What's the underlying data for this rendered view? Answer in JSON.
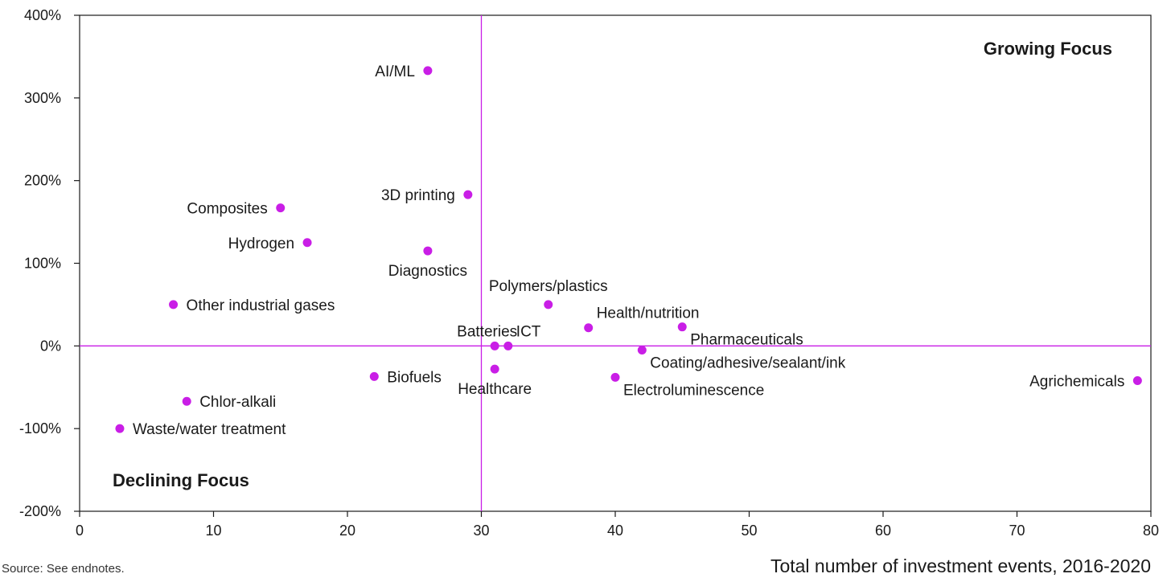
{
  "chart_data": {
    "type": "scatter",
    "xlabel": "Total number of investment events, 2016-2020",
    "ylabel": "",
    "xlim": [
      0,
      80
    ],
    "ylim": [
      -200,
      400
    ],
    "x_ticks": [
      0,
      10,
      20,
      30,
      40,
      50,
      60,
      70,
      80
    ],
    "y_ticks": [
      -200,
      -100,
      0,
      100,
      200,
      300,
      400
    ],
    "y_tick_labels": [
      "-200%",
      "-100%",
      "0%",
      "100%",
      "200%",
      "300%",
      "400%"
    ],
    "x_tick_labels": [
      "0",
      "10",
      "20",
      "30",
      "40",
      "50",
      "60",
      "70",
      "80"
    ],
    "reference_lines": {
      "x": 30,
      "y": 0
    },
    "quadrant_labels": {
      "top_right": "Growing Focus",
      "bottom_left": "Declining Focus"
    },
    "point_color": "#c91ee6",
    "reference_line_color": "#c91ee6",
    "points": [
      {
        "label": "AI/ML",
        "x": 26,
        "y": 333,
        "label_pos": "left"
      },
      {
        "label": "3D printing",
        "x": 29,
        "y": 183,
        "label_pos": "left"
      },
      {
        "label": "Composites",
        "x": 15,
        "y": 167,
        "label_pos": "left"
      },
      {
        "label": "Hydrogen",
        "x": 17,
        "y": 125,
        "label_pos": "left"
      },
      {
        "label": "Diagnostics",
        "x": 26,
        "y": 115,
        "label_pos": "below"
      },
      {
        "label": "Other industrial gases",
        "x": 7,
        "y": 50,
        "label_pos": "right"
      },
      {
        "label": "Polymers/plastics",
        "x": 35,
        "y": 50,
        "label_pos": "above"
      },
      {
        "label": "Health/nutrition",
        "x": 38,
        "y": 22,
        "label_pos": "above-right"
      },
      {
        "label": "Pharmaceuticals",
        "x": 45,
        "y": 23,
        "label_pos": "below-right"
      },
      {
        "label": "Batteries",
        "x": 31,
        "y": 0,
        "label_pos": "above-left"
      },
      {
        "label": "ICT",
        "x": 32,
        "y": 0,
        "label_pos": "above-right"
      },
      {
        "label": "Coating/adhesive/sealant/ink",
        "x": 42,
        "y": -5,
        "label_pos": "below-right"
      },
      {
        "label": "Healthcare",
        "x": 31,
        "y": -28,
        "label_pos": "below"
      },
      {
        "label": "Biofuels",
        "x": 22,
        "y": -37,
        "label_pos": "right"
      },
      {
        "label": "Electroluminescence",
        "x": 40,
        "y": -38,
        "label_pos": "below-right"
      },
      {
        "label": "Agrichemicals",
        "x": 79,
        "y": -42,
        "label_pos": "left"
      },
      {
        "label": "Chlor-alkali",
        "x": 8,
        "y": -67,
        "label_pos": "right"
      },
      {
        "label": "Waste/water treatment",
        "x": 3,
        "y": -100,
        "label_pos": "right"
      }
    ]
  },
  "footer": {
    "source": "Source: See endnotes."
  }
}
